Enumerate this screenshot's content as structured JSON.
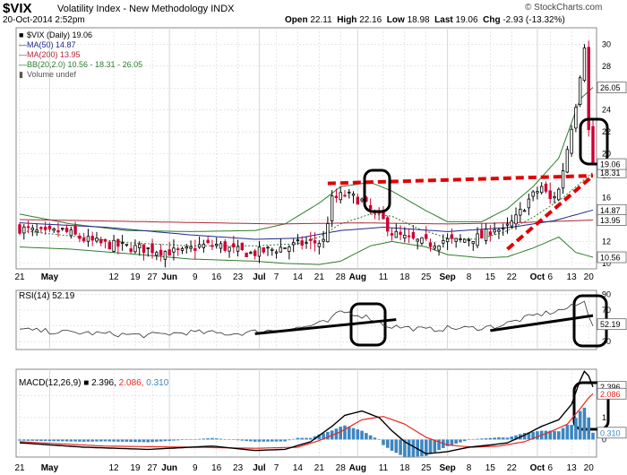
{
  "header": {
    "symbol": "$VIX",
    "name": "Volatility Index - New Methodology",
    "exchange": "INDX",
    "datetime": "20-Oct-2014 2:52pm",
    "open_label": "Open",
    "open": "22.11",
    "high_label": "High",
    "high": "22.16",
    "low_label": "Low",
    "low": "18.98",
    "last_label": "Last",
    "last": "19.06",
    "chg_label": "Chg",
    "chg": "-2.93 (-13.32%)",
    "brand": "© StockCharts.com"
  },
  "legend": {
    "price": "$VIX (Daily) 19.06",
    "ma50": "MA(50) 14.87",
    "ma200": "MA(200) 13.95",
    "bb": "BB(20,2.0) 10.56 - 18.31 - 26.05",
    "volume": "Volume undef",
    "rsi": "RSI(14) 52.19",
    "macd_prefix": "MACD(12,26,9)",
    "macd_v1": "2.396",
    "macd_v2": "2.086",
    "macd_v3": "0.310"
  },
  "tags": {
    "bb_upper": "26.05",
    "last": "19.06",
    "bb_mid": "18.31",
    "ma50": "14.87",
    "ma200": "13.95",
    "bb_lower": "10.56",
    "rsi": "52.19",
    "macd_line": "2.396",
    "macd_signal": "2.086",
    "macd_hist": "0.310"
  },
  "colors": {
    "up": "#000000",
    "down": "#cc0033",
    "ma50": "#1f2a8a",
    "ma200": "#b0283a",
    "bb": "#2e7d2e",
    "trend": "#e00000",
    "signal": "#e8281e",
    "hist": "#3d86c1",
    "tag_bg": "#ffffff",
    "grid": "#d6d6d6",
    "circle": "#000000"
  },
  "x_axis": {
    "labels": [
      {
        "t": "21",
        "i": 0,
        "bold": false
      },
      {
        "t": "May",
        "i": 7,
        "bold": true
      },
      {
        "t": "12",
        "i": 22,
        "bold": false
      },
      {
        "t": "19",
        "i": 27,
        "bold": false
      },
      {
        "t": "27",
        "i": 31,
        "bold": false
      },
      {
        "t": "Jun",
        "i": 35,
        "bold": true
      },
      {
        "t": "9",
        "i": 41,
        "bold": false
      },
      {
        "t": "16",
        "i": 46,
        "bold": false
      },
      {
        "t": "23",
        "i": 51,
        "bold": false
      },
      {
        "t": "Jul",
        "i": 56,
        "bold": true
      },
      {
        "t": "7",
        "i": 60,
        "bold": false
      },
      {
        "t": "14",
        "i": 65,
        "bold": false
      },
      {
        "t": "21",
        "i": 70,
        "bold": false
      },
      {
        "t": "28",
        "i": 75,
        "bold": false
      },
      {
        "t": "Aug",
        "i": 79,
        "bold": true
      },
      {
        "t": "11",
        "i": 85,
        "bold": false
      },
      {
        "t": "18",
        "i": 90,
        "bold": false
      },
      {
        "t": "25",
        "i": 95,
        "bold": false
      },
      {
        "t": "Sep",
        "i": 100,
        "bold": true
      },
      {
        "t": "8",
        "i": 105,
        "bold": false
      },
      {
        "t": "15",
        "i": 110,
        "bold": false
      },
      {
        "t": "22",
        "i": 115,
        "bold": false
      },
      {
        "t": "Oct",
        "i": 121,
        "bold": true
      },
      {
        "t": "6",
        "i": 124,
        "bold": false
      },
      {
        "t": "13",
        "i": 129,
        "bold": false
      },
      {
        "t": "20",
        "i": 133,
        "bold": false
      }
    ]
  },
  "chart_data": [
    {
      "type": "candlestick",
      "title": "$VIX (Daily) 19.06",
      "y_ticks": [
        10,
        12,
        14,
        16,
        18,
        20,
        22,
        24,
        26,
        28,
        30
      ],
      "ylim": [
        9.5,
        31.5
      ],
      "x_range": "21-Apr-2014 to 20-Oct-2014 (daily)",
      "keys": [
        [
          0,
          13.2
        ],
        [
          6,
          12.7
        ],
        [
          10,
          13.0
        ],
        [
          15,
          12.2
        ],
        [
          19,
          11.8
        ],
        [
          25,
          11.5
        ],
        [
          30,
          11.3
        ],
        [
          34,
          11.1
        ],
        [
          38,
          11.0
        ],
        [
          42,
          11.6
        ],
        [
          46,
          11.7
        ],
        [
          50,
          11.2
        ],
        [
          54,
          10.9
        ],
        [
          58,
          11.2
        ],
        [
          62,
          11.5
        ],
        [
          66,
          11.8
        ],
        [
          71,
          12.0
        ],
        [
          73,
          15.8
        ],
        [
          76,
          16.3
        ],
        [
          80,
          15.7
        ],
        [
          83,
          14.4
        ],
        [
          85,
          13.9
        ],
        [
          87,
          12.8
        ],
        [
          90,
          12.3
        ],
        [
          93,
          12.0
        ],
        [
          96,
          11.8
        ],
        [
          99,
          12.1
        ],
        [
          102,
          12.0
        ],
        [
          105,
          12.3
        ],
        [
          108,
          12.4
        ],
        [
          111,
          13.3
        ],
        [
          113,
          12.9
        ],
        [
          116,
          14.1
        ],
        [
          119,
          15.8
        ],
        [
          121,
          16.6
        ],
        [
          122,
          17.0
        ],
        [
          124,
          15.8
        ],
        [
          126,
          16.7
        ],
        [
          128,
          20.5
        ],
        [
          130,
          24.6
        ],
        [
          132,
          30.0
        ],
        [
          133,
          22.1
        ],
        [
          134,
          19.06
        ]
      ],
      "ma50": [
        [
          0,
          13.7
        ],
        [
          20,
          13.3
        ],
        [
          40,
          12.6
        ],
        [
          55,
          12.2
        ],
        [
          65,
          12.3
        ],
        [
          75,
          13.0
        ],
        [
          85,
          13.3
        ],
        [
          100,
          12.9
        ],
        [
          115,
          13.3
        ],
        [
          125,
          13.9
        ],
        [
          134,
          14.87
        ]
      ],
      "ma200": [
        [
          0,
          14.0
        ],
        [
          30,
          13.8
        ],
        [
          60,
          13.6
        ],
        [
          80,
          13.7
        ],
        [
          100,
          13.6
        ],
        [
          115,
          13.7
        ],
        [
          134,
          13.95
        ]
      ],
      "bb_mid": [
        [
          0,
          13.0
        ],
        [
          12,
          12.5
        ],
        [
          25,
          11.9
        ],
        [
          40,
          11.6
        ],
        [
          55,
          11.6
        ],
        [
          65,
          11.8
        ],
        [
          70,
          12.4
        ],
        [
          75,
          13.6
        ],
        [
          82,
          14.5
        ],
        [
          87,
          14.3
        ],
        [
          93,
          13.2
        ],
        [
          100,
          12.3
        ],
        [
          107,
          12.2
        ],
        [
          113,
          12.8
        ],
        [
          120,
          14.2
        ],
        [
          127,
          16.0
        ],
        [
          134,
          18.31
        ]
      ],
      "bb_upper": [
        [
          0,
          14.5
        ],
        [
          12,
          13.6
        ],
        [
          25,
          13.0
        ],
        [
          40,
          12.9
        ],
        [
          55,
          13.0
        ],
        [
          62,
          13.6
        ],
        [
          70,
          15.5
        ],
        [
          75,
          17.0
        ],
        [
          82,
          17.4
        ],
        [
          87,
          16.6
        ],
        [
          95,
          14.8
        ],
        [
          100,
          13.8
        ],
        [
          108,
          13.8
        ],
        [
          114,
          15.0
        ],
        [
          120,
          17.0
        ],
        [
          126,
          19.6
        ],
        [
          131,
          25.0
        ],
        [
          134,
          26.05
        ]
      ],
      "bb_lower": [
        [
          0,
          11.5
        ],
        [
          12,
          11.3
        ],
        [
          25,
          10.9
        ],
        [
          40,
          10.4
        ],
        [
          55,
          10.2
        ],
        [
          62,
          10.0
        ],
        [
          70,
          9.9
        ],
        [
          75,
          10.2
        ],
        [
          82,
          11.6
        ],
        [
          87,
          12.0
        ],
        [
          95,
          11.5
        ],
        [
          100,
          10.8
        ],
        [
          108,
          10.5
        ],
        [
          114,
          10.6
        ],
        [
          120,
          11.4
        ],
        [
          126,
          12.4
        ],
        [
          130,
          11.0
        ],
        [
          134,
          10.56
        ]
      ],
      "trend_resistance": [
        [
          72,
          17.3
        ],
        [
          134,
          18.0
        ]
      ],
      "trend_support": [
        [
          114,
          11.3
        ],
        [
          134,
          18.0
        ]
      ]
    },
    {
      "type": "line",
      "title": "RSI(14) 52.19",
      "y_ticks": [
        30,
        50,
        70,
        90
      ],
      "ylim": [
        20,
        95
      ],
      "keys": [
        [
          0,
          45
        ],
        [
          10,
          42
        ],
        [
          20,
          40
        ],
        [
          30,
          38
        ],
        [
          40,
          42
        ],
        [
          50,
          40
        ],
        [
          60,
          45
        ],
        [
          66,
          48
        ],
        [
          72,
          55
        ],
        [
          75,
          68
        ],
        [
          78,
          66
        ],
        [
          82,
          60
        ],
        [
          86,
          50
        ],
        [
          90,
          48
        ],
        [
          95,
          45
        ],
        [
          100,
          47
        ],
        [
          106,
          47
        ],
        [
          112,
          50
        ],
        [
          117,
          58
        ],
        [
          121,
          64
        ],
        [
          125,
          68
        ],
        [
          129,
          74
        ],
        [
          132,
          80
        ],
        [
          133,
          65
        ],
        [
          134,
          52.19
        ]
      ],
      "trendlines": [
        [
          [
            55,
            40
          ],
          [
            88,
            58
          ]
        ],
        [
          [
            110,
            44
          ],
          [
            134,
            63
          ]
        ]
      ]
    },
    {
      "type": "line",
      "title": "MACD(12,26,9) 2.396, 2.086, 0.310",
      "y_ticks": [
        0,
        1,
        2
      ],
      "ylim": [
        -0.8,
        3.2
      ],
      "macd": [
        [
          0,
          -0.15
        ],
        [
          15,
          -0.35
        ],
        [
          30,
          -0.45
        ],
        [
          45,
          -0.3
        ],
        [
          55,
          -0.5
        ],
        [
          62,
          -0.45
        ],
        [
          68,
          -0.1
        ],
        [
          73,
          0.6
        ],
        [
          76,
          1.1
        ],
        [
          80,
          1.3
        ],
        [
          84,
          1.0
        ],
        [
          87,
          0.4
        ],
        [
          90,
          -0.1
        ],
        [
          95,
          -0.65
        ],
        [
          100,
          -0.55
        ],
        [
          105,
          -0.35
        ],
        [
          110,
          -0.25
        ],
        [
          114,
          -0.15
        ],
        [
          118,
          0.2
        ],
        [
          122,
          0.6
        ],
        [
          126,
          0.9
        ],
        [
          129,
          1.6
        ],
        [
          131,
          2.7
        ],
        [
          132,
          3.1
        ],
        [
          133,
          2.9
        ],
        [
          134,
          2.396
        ]
      ],
      "signal": [
        [
          0,
          -0.1
        ],
        [
          20,
          -0.3
        ],
        [
          40,
          -0.35
        ],
        [
          55,
          -0.4
        ],
        [
          65,
          -0.35
        ],
        [
          70,
          -0.05
        ],
        [
          75,
          0.35
        ],
        [
          80,
          0.9
        ],
        [
          85,
          1.05
        ],
        [
          90,
          0.7
        ],
        [
          95,
          0.1
        ],
        [
          100,
          -0.25
        ],
        [
          106,
          -0.35
        ],
        [
          112,
          -0.3
        ],
        [
          118,
          -0.1
        ],
        [
          124,
          0.35
        ],
        [
          128,
          0.7
        ],
        [
          131,
          1.4
        ],
        [
          133,
          1.9
        ],
        [
          134,
          2.086
        ]
      ]
    }
  ]
}
